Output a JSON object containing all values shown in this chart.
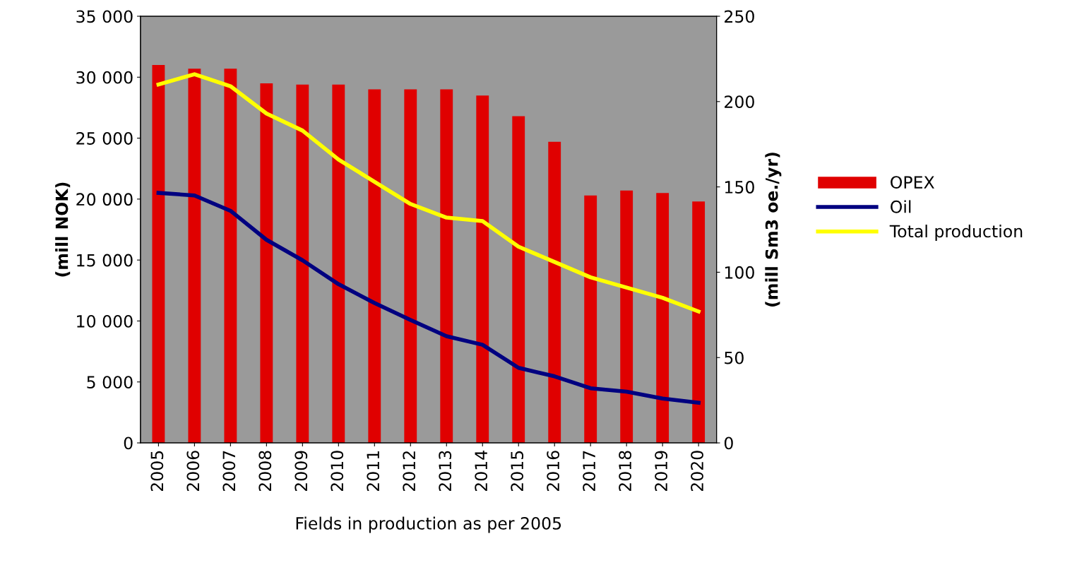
{
  "chart_data": {
    "type": "bar",
    "xlabel": "Fields in production as per 2005",
    "ylabel": "(mill NOK)",
    "y2label": "(mill Sm3 oe./yr)",
    "categories": [
      "2005",
      "2006",
      "2007",
      "2008",
      "2009",
      "2010",
      "2011",
      "2012",
      "2013",
      "2014",
      "2015",
      "2016",
      "2017",
      "2018",
      "2019",
      "2020"
    ],
    "series": [
      {
        "name": "OPEX",
        "color": "#e00000",
        "values": [
          31000,
          30700,
          30700,
          29500,
          29400,
          29400,
          29000,
          29000,
          29000,
          28500,
          26800,
          24700,
          20300,
          20700,
          20500,
          19800
        ]
      },
      {
        "name": "Oil",
        "type": "line",
        "axis": "y2",
        "color": "#000080",
        "values": [
          146.5,
          145,
          136,
          119,
          107,
          93,
          82,
          72,
          62.5,
          57.5,
          44,
          39,
          32,
          30,
          26,
          23.5
        ]
      },
      {
        "name": "Total production",
        "type": "line",
        "axis": "y2",
        "color": "#ffff00",
        "values": [
          210,
          216,
          209,
          193,
          183,
          166,
          153,
          140,
          132,
          130,
          115,
          106,
          97,
          91,
          85,
          77
        ]
      }
    ],
    "ylim": [
      0,
      35000
    ],
    "yticks": [
      {
        "value": 0,
        "label": "0"
      },
      {
        "value": 5000,
        "label": "5 000"
      },
      {
        "value": 10000,
        "label": "10 000"
      },
      {
        "value": 15000,
        "label": "15 000"
      },
      {
        "value": 20000,
        "label": "20 000"
      },
      {
        "value": 25000,
        "label": "25 000"
      },
      {
        "value": 30000,
        "label": "30 000"
      },
      {
        "value": 35000,
        "label": "35 000"
      }
    ],
    "y2lim": [
      0,
      250
    ],
    "y2ticks": [
      0,
      50,
      100,
      150,
      200,
      250
    ],
    "grid": false,
    "legend": "right",
    "marker": "none",
    "line_style": "solid"
  }
}
